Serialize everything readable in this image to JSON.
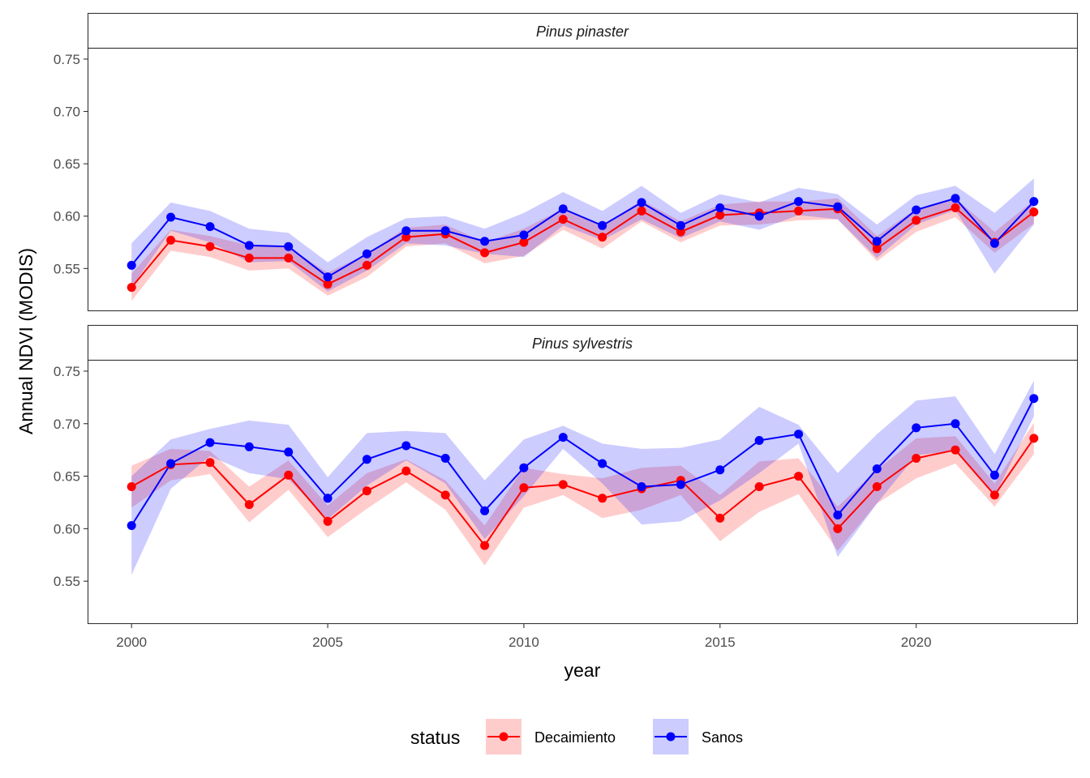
{
  "chart_data": {
    "type": "line",
    "title": "",
    "xlabel": "year",
    "ylabel": "Annual NDVI (MODIS)",
    "xlim": [
      1998.9,
      2024.1
    ],
    "ylim": [
      0.51,
      0.76
    ],
    "x_ticks": [
      2000,
      2005,
      2010,
      2015,
      2020
    ],
    "y_ticks": [
      0.55,
      0.6,
      0.65,
      0.7,
      0.75
    ],
    "x_tick_labels": [
      "2000",
      "2005",
      "2010",
      "2015",
      "2020"
    ],
    "y_tick_labels": [
      "0.55",
      "0.60",
      "0.65",
      "0.70",
      "0.75"
    ],
    "legend": {
      "title": "status",
      "position": "bottom",
      "entries": [
        {
          "name": "Decaimiento",
          "color": "#ff0000",
          "fill": "#ffcccc"
        },
        {
          "name": "Sanos",
          "color": "#0000ff",
          "fill": "#ccccff"
        }
      ]
    },
    "x": [
      2000,
      2001,
      2002,
      2003,
      2004,
      2005,
      2006,
      2007,
      2008,
      2009,
      2010,
      2011,
      2012,
      2013,
      2014,
      2015,
      2016,
      2017,
      2018,
      2019,
      2020,
      2021,
      2022,
      2023
    ],
    "panels": [
      {
        "strip": "Pinus pinaster",
        "series": [
          {
            "name": "Decaimiento",
            "values": [
              0.532,
              0.577,
              0.571,
              0.56,
              0.56,
              0.535,
              0.553,
              0.58,
              0.583,
              0.565,
              0.575,
              0.597,
              0.58,
              0.605,
              0.585,
              0.601,
              0.603,
              0.605,
              0.607,
              0.569,
              0.596,
              0.608,
              0.575,
              0.604
            ],
            "lower": [
              0.519,
              0.567,
              0.561,
              0.548,
              0.55,
              0.524,
              0.542,
              0.571,
              0.574,
              0.555,
              0.562,
              0.587,
              0.569,
              0.595,
              0.575,
              0.591,
              0.592,
              0.596,
              0.597,
              0.557,
              0.585,
              0.599,
              0.565,
              0.593
            ],
            "upper": [
              0.545,
              0.587,
              0.581,
              0.572,
              0.57,
              0.546,
              0.564,
              0.589,
              0.592,
              0.575,
              0.588,
              0.607,
              0.591,
              0.615,
              0.595,
              0.611,
              0.614,
              0.614,
              0.617,
              0.581,
              0.607,
              0.617,
              0.585,
              0.615
            ]
          },
          {
            "name": "Sanos",
            "values": [
              0.553,
              0.599,
              0.59,
              0.572,
              0.571,
              0.542,
              0.564,
              0.586,
              0.586,
              0.576,
              0.582,
              0.607,
              0.591,
              0.613,
              0.591,
              0.608,
              0.6,
              0.614,
              0.609,
              0.576,
              0.606,
              0.617,
              0.574,
              0.614
            ],
            "lower": [
              0.532,
              0.586,
              0.575,
              0.556,
              0.557,
              0.528,
              0.548,
              0.574,
              0.572,
              0.564,
              0.561,
              0.591,
              0.577,
              0.597,
              0.579,
              0.595,
              0.587,
              0.601,
              0.597,
              0.56,
              0.592,
              0.606,
              0.545,
              0.592
            ],
            "upper": [
              0.574,
              0.613,
              0.605,
              0.588,
              0.584,
              0.556,
              0.58,
              0.598,
              0.6,
              0.588,
              0.603,
              0.623,
              0.605,
              0.629,
              0.603,
              0.621,
              0.613,
              0.627,
              0.621,
              0.592,
              0.62,
              0.629,
              0.603,
              0.636
            ]
          }
        ]
      },
      {
        "strip": "Pinus sylvestris",
        "series": [
          {
            "name": "Decaimiento",
            "values": [
              0.64,
              0.661,
              0.663,
              0.623,
              0.651,
              0.607,
              0.636,
              0.655,
              0.632,
              0.584,
              0.639,
              0.642,
              0.629,
              0.638,
              0.646,
              0.61,
              0.64,
              0.65,
              0.6,
              0.64,
              0.667,
              0.675,
              0.632,
              0.686
            ],
            "lower": [
              0.62,
              0.646,
              0.652,
              0.606,
              0.637,
              0.592,
              0.619,
              0.644,
              0.618,
              0.565,
              0.62,
              0.632,
              0.61,
              0.618,
              0.632,
              0.588,
              0.616,
              0.633,
              0.579,
              0.624,
              0.648,
              0.662,
              0.621,
              0.671
            ],
            "upper": [
              0.66,
              0.676,
              0.674,
              0.64,
              0.665,
              0.622,
              0.653,
              0.666,
              0.646,
              0.603,
              0.658,
              0.652,
              0.648,
              0.658,
              0.66,
              0.632,
              0.664,
              0.667,
              0.621,
              0.656,
              0.686,
              0.688,
              0.643,
              0.701
            ]
          },
          {
            "name": "Sanos",
            "values": [
              0.603,
              0.662,
              0.682,
              0.678,
              0.673,
              0.629,
              0.666,
              0.679,
              0.667,
              0.617,
              0.658,
              0.687,
              0.662,
              0.64,
              0.642,
              0.656,
              0.684,
              0.69,
              0.613,
              0.657,
              0.696,
              0.7,
              0.651,
              0.724
            ],
            "lower": [
              0.556,
              0.638,
              0.669,
              0.653,
              0.647,
              0.609,
              0.641,
              0.665,
              0.643,
              0.59,
              0.631,
              0.676,
              0.643,
              0.604,
              0.607,
              0.627,
              0.653,
              0.681,
              0.573,
              0.624,
              0.67,
              0.674,
              0.631,
              0.707
            ],
            "upper": [
              0.65,
              0.685,
              0.695,
              0.703,
              0.699,
              0.649,
              0.691,
              0.693,
              0.691,
              0.646,
              0.685,
              0.698,
              0.681,
              0.676,
              0.677,
              0.685,
              0.716,
              0.699,
              0.653,
              0.69,
              0.722,
              0.726,
              0.671,
              0.741
            ]
          }
        ]
      }
    ]
  }
}
